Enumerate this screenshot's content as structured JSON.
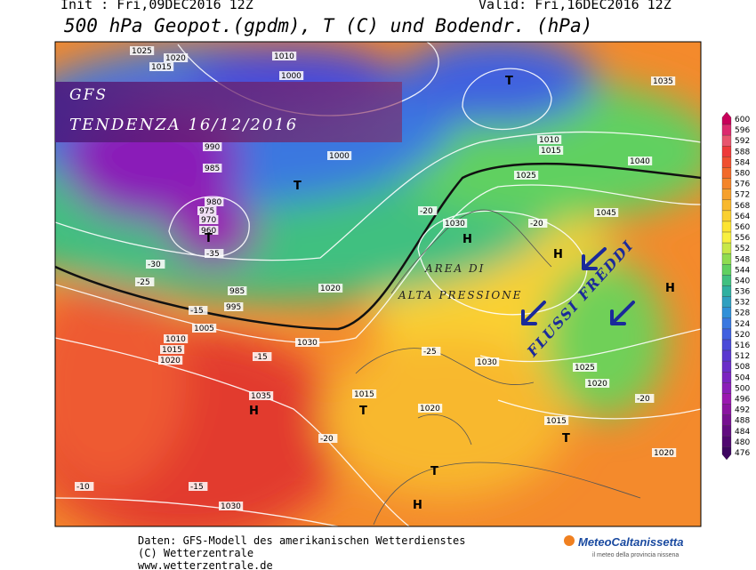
{
  "header": {
    "init": "Init : Fri,09DEC2016 12Z",
    "valid": "Valid: Fri,16DEC2016 12Z",
    "title": "500 hPa Geopot.(gpdm), T (C) und Bodendr. (hPa)"
  },
  "overlay": {
    "line1": "GFS",
    "line2": "TENDENZA 16/12/2016"
  },
  "annotations": {
    "high_1": "AREA DI",
    "high_2": "ALTA PRESSIONE",
    "cold": "FLUSSI FREDDI"
  },
  "map_labels": [
    "1025",
    "1015",
    "1020",
    "1010",
    "1000",
    "990",
    "985",
    "980",
    "975",
    "970",
    "960",
    "1005",
    "1020",
    "1030",
    "1035",
    "1015",
    "1020",
    "1030",
    "1030",
    "1045",
    "1040",
    "1035",
    "1025",
    "1010",
    "1015",
    "1000",
    "985",
    "995",
    "1010",
    "1015",
    "1020",
    "1015",
    "1020",
    "1030",
    "1025",
    "1020",
    "-35",
    "-30",
    "-25",
    "-20",
    "-15",
    "-10",
    "-15",
    "-20",
    "-25",
    "-20",
    "-15",
    "-20",
    "H",
    "H",
    "H",
    "H",
    "H",
    "T",
    "T",
    "T",
    "T",
    "T",
    "T"
  ],
  "legend": {
    "values": [
      600,
      596,
      592,
      588,
      584,
      580,
      576,
      572,
      568,
      564,
      560,
      556,
      552,
      548,
      544,
      540,
      536,
      532,
      528,
      524,
      520,
      516,
      512,
      508,
      504,
      500,
      496,
      492,
      488,
      484,
      480,
      476
    ],
    "colors": [
      "#c8005a",
      "#dc2a6e",
      "#e8556e",
      "#ee3a3a",
      "#f05030",
      "#f26a2a",
      "#f4852a",
      "#f6a02c",
      "#f8b82e",
      "#fad030",
      "#fce432",
      "#f8f040",
      "#c8e848",
      "#8fdc50",
      "#60d060",
      "#40c080",
      "#30b0a0",
      "#30a0c0",
      "#3090d8",
      "#3a78e0",
      "#4060e0",
      "#4a4ad8",
      "#5a38d0",
      "#6a2ec8",
      "#7a24c0",
      "#8a1eb8",
      "#9a18b0",
      "#8a14a0",
      "#761090",
      "#620c80",
      "#500870",
      "#3e0660"
    ]
  },
  "footer": {
    "line1": "Daten: GFS-Modell des amerikanischen Wetterdienstes",
    "line2": "(C) Wetterzentrale",
    "line3": "www.wetterzentrale.de",
    "logo": "MeteoCaltanissetta",
    "tagline": "il meteo della provincia nissena"
  }
}
